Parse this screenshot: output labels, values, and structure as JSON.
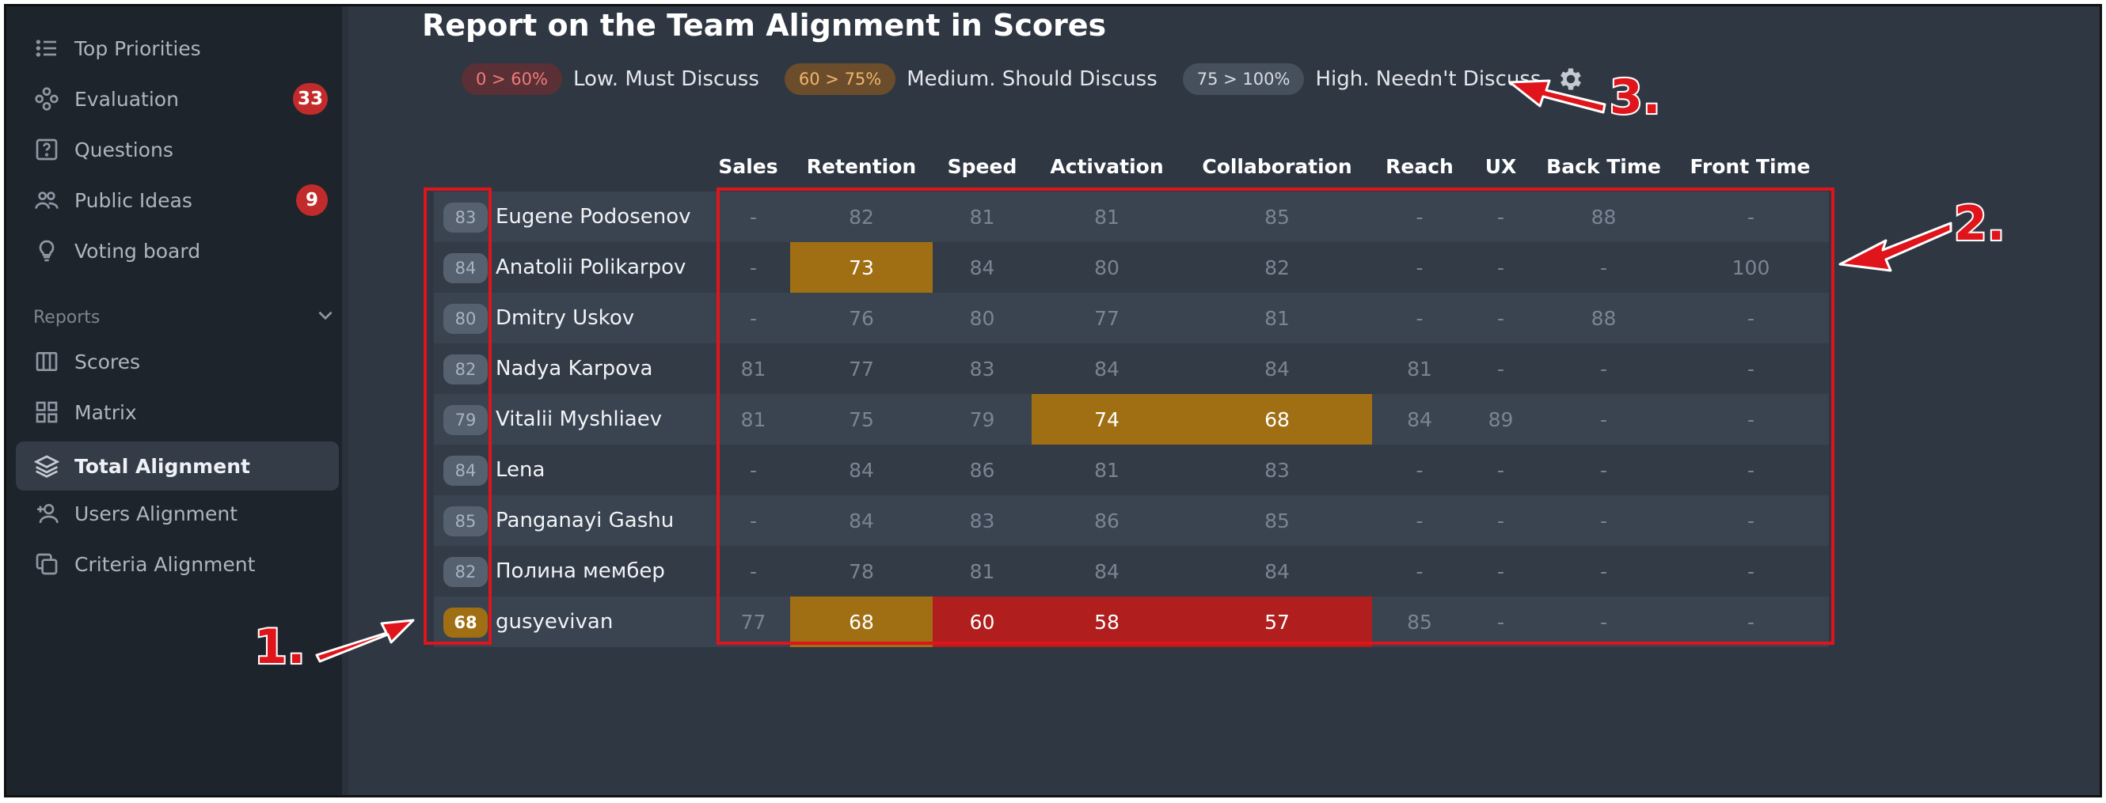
{
  "sidebar": {
    "items": [
      {
        "label": "Top Priorities",
        "icon": "list-icon"
      },
      {
        "label": "Evaluation",
        "icon": "nodes-icon",
        "badge": "33"
      },
      {
        "label": "Questions",
        "icon": "question-icon"
      },
      {
        "label": "Public Ideas",
        "icon": "users-icon",
        "badge": "9"
      },
      {
        "label": "Voting board",
        "icon": "bulb-icon"
      }
    ],
    "reports_label": "Reports",
    "report_items": [
      {
        "label": "Scores",
        "icon": "columns-icon"
      },
      {
        "label": "Matrix",
        "icon": "grid-icon"
      },
      {
        "label": "Total Alignment",
        "icon": "layers-icon",
        "active": true
      },
      {
        "label": "Users Alignment",
        "icon": "user-add-icon"
      },
      {
        "label": "Criteria Alignment",
        "icon": "copy-icon"
      }
    ]
  },
  "page": {
    "title": "Report on the Team Alignment in Scores"
  },
  "legend": [
    {
      "range": "0 > 60%",
      "text": "Low. Must Discuss",
      "level": "low"
    },
    {
      "range": "60 > 75%",
      "text": "Medium. Should Discuss",
      "level": "med"
    },
    {
      "range": "75 > 100%",
      "text": "High. Needn't Discuss",
      "level": "high"
    }
  ],
  "columns": [
    "Sales",
    "Retention",
    "Speed",
    "Activation",
    "Collaboration",
    "Reach",
    "UX",
    "Back Time",
    "Front Time"
  ],
  "rows": [
    {
      "score": "83",
      "name": "Eugene Podosenov",
      "cells": [
        "-",
        "82",
        "81",
        "81",
        "85",
        "-",
        "-",
        "88",
        "-"
      ]
    },
    {
      "score": "84",
      "name": "Anatolii Polikarpov",
      "cells": [
        "-",
        "73",
        "84",
        "80",
        "82",
        "-",
        "-",
        "-",
        "100"
      ]
    },
    {
      "score": "80",
      "name": "Dmitry Uskov",
      "cells": [
        "-",
        "76",
        "80",
        "77",
        "81",
        "-",
        "-",
        "88",
        "-"
      ]
    },
    {
      "score": "82",
      "name": "Nadya Karpova",
      "cells": [
        "81",
        "77",
        "83",
        "84",
        "84",
        "81",
        "-",
        "-",
        "-"
      ]
    },
    {
      "score": "79",
      "name": "Vitalii Myshliaev",
      "cells": [
        "81",
        "75",
        "79",
        "74",
        "68",
        "84",
        "89",
        "-",
        "-"
      ]
    },
    {
      "score": "84",
      "name": "Lena",
      "cells": [
        "-",
        "84",
        "86",
        "81",
        "83",
        "-",
        "-",
        "-",
        "-"
      ]
    },
    {
      "score": "85",
      "name": "Panganayi Gashu",
      "cells": [
        "-",
        "84",
        "83",
        "86",
        "85",
        "-",
        "-",
        "-",
        "-"
      ]
    },
    {
      "score": "82",
      "name": "Полина мембер",
      "cells": [
        "-",
        "78",
        "81",
        "84",
        "84",
        "-",
        "-",
        "-",
        "-"
      ]
    },
    {
      "score": "68",
      "name": "gusyevivan",
      "cells": [
        "77",
        "68",
        "60",
        "58",
        "57",
        "85",
        "-",
        "-",
        "-"
      ]
    }
  ],
  "colors": {
    "low": "#b01e1e",
    "medium": "#a06f14",
    "annotation": "#e0141b"
  },
  "annotations": [
    "1.",
    "2.",
    "3."
  ]
}
